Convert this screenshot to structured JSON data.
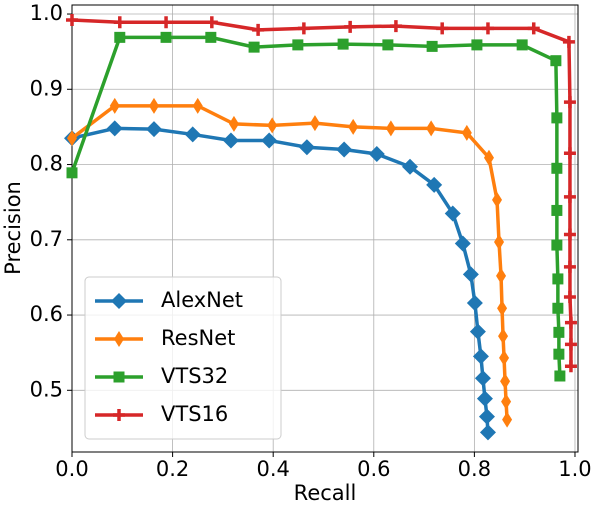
{
  "chart_data": {
    "type": "line",
    "xlabel": "Recall",
    "ylabel": "Precision",
    "xlim": [
      0,
      1.006
    ],
    "ylim": [
      0.418,
      1.012
    ],
    "xticks": [
      {
        "value": 0,
        "label": "0.0"
      },
      0.2,
      0.4,
      0.6,
      0.8,
      {
        "value": 1,
        "label": "1.0"
      }
    ],
    "yticks": [
      0.5,
      0.6,
      0.7,
      0.8,
      0.9,
      {
        "value": 1,
        "label": "1.0"
      }
    ],
    "grid": true,
    "legend": "lower left",
    "series": [
      {
        "name": "AlexNet",
        "color": "#1f77b4",
        "marker": "diamond",
        "x": [
          0,
          0.085,
          0.163,
          0.24,
          0.316,
          0.392,
          0.467,
          0.541,
          0.606,
          0.672,
          0.72,
          0.757,
          0.777,
          0.793,
          0.801,
          0.807,
          0.813,
          0.817,
          0.821,
          0.825,
          0.827
        ],
        "values": [
          0.835,
          0.848,
          0.847,
          0.84,
          0.832,
          0.832,
          0.823,
          0.82,
          0.814,
          0.797,
          0.773,
          0.735,
          0.695,
          0.654,
          0.616,
          0.578,
          0.545,
          0.516,
          0.489,
          0.465,
          0.444
        ]
      },
      {
        "name": "ResNet",
        "color": "#ff7f0e",
        "marker": "thin-diamond",
        "x": [
          0,
          0.085,
          0.163,
          0.25,
          0.322,
          0.398,
          0.483,
          0.559,
          0.634,
          0.714,
          0.785,
          0.829,
          0.845,
          0.849,
          0.853,
          0.855,
          0.857,
          0.859,
          0.861,
          0.863,
          0.865
        ],
        "values": [
          0.835,
          0.878,
          0.878,
          0.878,
          0.854,
          0.852,
          0.855,
          0.85,
          0.848,
          0.848,
          0.842,
          0.809,
          0.753,
          0.697,
          0.652,
          0.609,
          0.572,
          0.543,
          0.512,
          0.485,
          0.461
        ]
      },
      {
        "name": "VTS32",
        "color": "#2ca02c",
        "marker": "square",
        "x": [
          0,
          0.095,
          0.187,
          0.276,
          0.362,
          0.449,
          0.539,
          0.628,
          0.716,
          0.805,
          0.895,
          0.962,
          0.964,
          0.964,
          0.964,
          0.964,
          0.966,
          0.966,
          0.968,
          0.968,
          0.97
        ],
        "values": [
          0.789,
          0.969,
          0.969,
          0.969,
          0.956,
          0.959,
          0.96,
          0.959,
          0.957,
          0.959,
          0.959,
          0.938,
          0.862,
          0.795,
          0.739,
          0.693,
          0.648,
          0.609,
          0.577,
          0.548,
          0.519
        ]
      },
      {
        "name": "VTS16",
        "color": "#d62728",
        "marker": "plus",
        "x": [
          0,
          0.095,
          0.187,
          0.278,
          0.37,
          0.461,
          0.553,
          0.644,
          0.736,
          0.827,
          0.918,
          0.988,
          0.99,
          0.99,
          0.99,
          0.99,
          0.99,
          0.99,
          0.992,
          0.992,
          0.992
        ],
        "values": [
          0.992,
          0.989,
          0.989,
          0.989,
          0.979,
          0.981,
          0.983,
          0.984,
          0.981,
          0.981,
          0.981,
          0.963,
          0.883,
          0.815,
          0.757,
          0.707,
          0.664,
          0.624,
          0.59,
          0.561,
          0.532
        ]
      }
    ]
  }
}
